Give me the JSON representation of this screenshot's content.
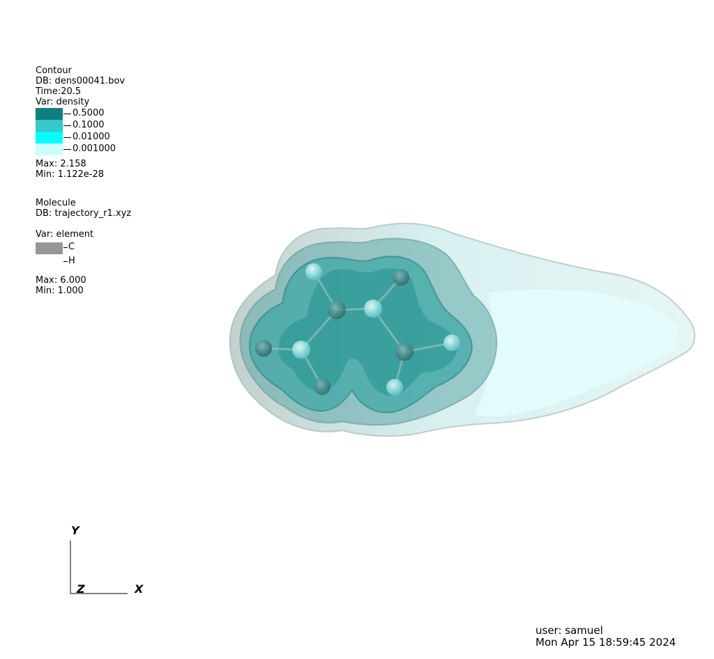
{
  "contour_legend": {
    "title": "Contour",
    "db": "DB: dens00041.bov",
    "time": "Time:20.5",
    "var": "Var: density",
    "levels": [
      {
        "label": "0.5000",
        "color": "#0f7f7f"
      },
      {
        "label": "0.1000",
        "color": "#37c8c8"
      },
      {
        "label": "0.01000",
        "color": "#00ffff"
      },
      {
        "label": "0.001000",
        "color": "#ccffff"
      }
    ],
    "max": "Max:  2.158",
    "min": "Min:  1.122e-28"
  },
  "molecule_legend": {
    "title": "Molecule",
    "db": "DB: trajectory_r1.xyz",
    "var": "Var: element",
    "elements": [
      {
        "label": "C",
        "color": "#969696"
      },
      {
        "label": "H",
        "color": "#ffffff"
      }
    ],
    "max": "Max:  6.000",
    "min": "Min:  1.000"
  },
  "axes": {
    "y": "Y",
    "z": "Z",
    "x": "X"
  },
  "footer": {
    "user": "user: samuel",
    "timestamp": "Mon Apr 15 18:59:45 2024"
  }
}
